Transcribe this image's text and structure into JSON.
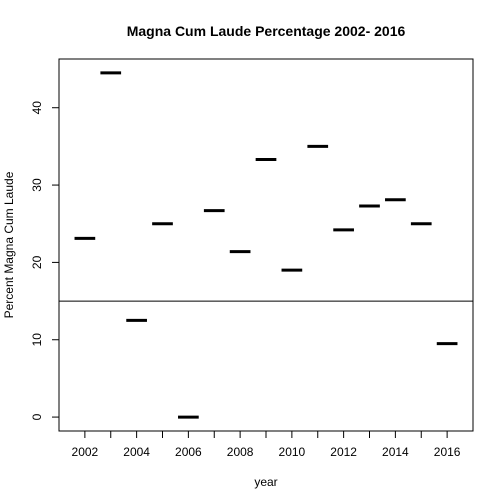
{
  "chart_data": {
    "type": "scatter",
    "title": "Magna Cum Laude Percentage 2002- 2016",
    "xlabel": "year",
    "ylabel": "Percent Magna Cum Laude",
    "xlim": [
      2001.0,
      2017.0
    ],
    "ylim": [
      -1.8,
      46.3
    ],
    "x_ticks": [
      2002,
      2004,
      2006,
      2008,
      2010,
      2012,
      2014,
      2016
    ],
    "x_minor_ticks": [
      2003,
      2005,
      2007,
      2009,
      2011,
      2013,
      2015
    ],
    "y_ticks": [
      0,
      10,
      20,
      30,
      40
    ],
    "marker": "horizontal-segment",
    "grid": false,
    "reference_line": {
      "y": 15
    },
    "points": [
      {
        "x": 2002,
        "y": 23.1
      },
      {
        "x": 2003,
        "y": 44.5
      },
      {
        "x": 2004,
        "y": 12.5
      },
      {
        "x": 2005,
        "y": 25.0
      },
      {
        "x": 2006,
        "y": 0.0
      },
      {
        "x": 2007,
        "y": 26.7
      },
      {
        "x": 2008,
        "y": 21.4
      },
      {
        "x": 2009,
        "y": 33.3
      },
      {
        "x": 2010,
        "y": 19.0
      },
      {
        "x": 2011,
        "y": 35.0
      },
      {
        "x": 2012,
        "y": 24.2
      },
      {
        "x": 2013,
        "y": 27.3
      },
      {
        "x": 2014,
        "y": 28.1
      },
      {
        "x": 2015,
        "y": 25.0
      },
      {
        "x": 2016,
        "y": 9.5
      }
    ],
    "colors": {
      "marks": "#000000",
      "axes": "#000000",
      "background": "#ffffff"
    }
  }
}
